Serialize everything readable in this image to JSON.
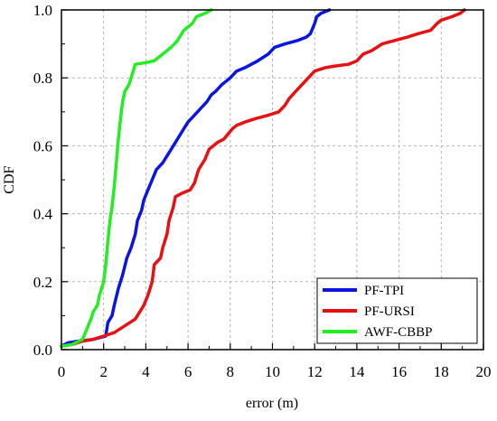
{
  "chart_data": {
    "type": "line",
    "xlabel": "error (m)",
    "ylabel": "CDF",
    "xlim": [
      0,
      20
    ],
    "ylim": [
      0,
      1
    ],
    "x_ticks": [
      0,
      2,
      4,
      6,
      8,
      10,
      12,
      14,
      16,
      18,
      20
    ],
    "y_ticks": [
      0,
      0.2,
      0.4,
      0.6,
      0.8,
      1.0
    ],
    "x_tick_labels": [
      "0",
      "2",
      "4",
      "6",
      "8",
      "10",
      "12",
      "14",
      "16",
      "18",
      "20"
    ],
    "y_tick_labels": [
      "0.0",
      "0.2",
      "0.4",
      "0.6",
      "0.8",
      "1.0"
    ],
    "grid": true,
    "legend_position": "bottom-right",
    "series": [
      {
        "name": "PF-TPI",
        "color": "#0a14e6",
        "points": [
          [
            0,
            0.01
          ],
          [
            0.3,
            0.02
          ],
          [
            0.8,
            0.025
          ],
          [
            1.5,
            0.03
          ],
          [
            2.1,
            0.04
          ],
          [
            2.2,
            0.08
          ],
          [
            2.4,
            0.1
          ],
          [
            2.5,
            0.13
          ],
          [
            2.7,
            0.18
          ],
          [
            2.9,
            0.22
          ],
          [
            3.1,
            0.27
          ],
          [
            3.3,
            0.3
          ],
          [
            3.5,
            0.34
          ],
          [
            3.6,
            0.38
          ],
          [
            3.8,
            0.41
          ],
          [
            3.9,
            0.44
          ],
          [
            4.1,
            0.47
          ],
          [
            4.3,
            0.5
          ],
          [
            4.5,
            0.53
          ],
          [
            4.8,
            0.55
          ],
          [
            5.0,
            0.57
          ],
          [
            5.3,
            0.6
          ],
          [
            5.6,
            0.63
          ],
          [
            5.8,
            0.65
          ],
          [
            6.0,
            0.67
          ],
          [
            6.3,
            0.69
          ],
          [
            6.6,
            0.71
          ],
          [
            6.9,
            0.73
          ],
          [
            7.1,
            0.75
          ],
          [
            7.3,
            0.76
          ],
          [
            7.6,
            0.78
          ],
          [
            8.0,
            0.8
          ],
          [
            8.3,
            0.82
          ],
          [
            8.7,
            0.83
          ],
          [
            9.0,
            0.84
          ],
          [
            9.3,
            0.85
          ],
          [
            9.8,
            0.87
          ],
          [
            10.1,
            0.89
          ],
          [
            10.6,
            0.9
          ],
          [
            11.2,
            0.91
          ],
          [
            11.6,
            0.92
          ],
          [
            11.8,
            0.93
          ],
          [
            12.0,
            0.96
          ],
          [
            12.1,
            0.98
          ],
          [
            12.3,
            0.99
          ],
          [
            12.5,
            0.995
          ],
          [
            12.7,
            1.0
          ]
        ]
      },
      {
        "name": "PF-URSI",
        "color": "#e81010",
        "points": [
          [
            0,
            0.01
          ],
          [
            0.5,
            0.015
          ],
          [
            1.0,
            0.025
          ],
          [
            1.5,
            0.03
          ],
          [
            2.0,
            0.04
          ],
          [
            2.5,
            0.05
          ],
          [
            3.0,
            0.07
          ],
          [
            3.5,
            0.09
          ],
          [
            3.9,
            0.13
          ],
          [
            4.1,
            0.16
          ],
          [
            4.3,
            0.2
          ],
          [
            4.4,
            0.25
          ],
          [
            4.7,
            0.27
          ],
          [
            4.8,
            0.3
          ],
          [
            5.0,
            0.34
          ],
          [
            5.1,
            0.38
          ],
          [
            5.3,
            0.42
          ],
          [
            5.4,
            0.45
          ],
          [
            5.7,
            0.46
          ],
          [
            6.1,
            0.47
          ],
          [
            6.3,
            0.49
          ],
          [
            6.5,
            0.53
          ],
          [
            6.8,
            0.56
          ],
          [
            7.0,
            0.59
          ],
          [
            7.4,
            0.61
          ],
          [
            7.7,
            0.62
          ],
          [
            8.1,
            0.65
          ],
          [
            8.3,
            0.66
          ],
          [
            8.7,
            0.67
          ],
          [
            9.2,
            0.68
          ],
          [
            9.8,
            0.69
          ],
          [
            10.3,
            0.7
          ],
          [
            10.6,
            0.72
          ],
          [
            10.8,
            0.74
          ],
          [
            11.1,
            0.76
          ],
          [
            11.4,
            0.78
          ],
          [
            11.7,
            0.8
          ],
          [
            12.0,
            0.82
          ],
          [
            12.5,
            0.83
          ],
          [
            13.0,
            0.835
          ],
          [
            13.6,
            0.84
          ],
          [
            14.0,
            0.85
          ],
          [
            14.3,
            0.87
          ],
          [
            14.7,
            0.88
          ],
          [
            15.2,
            0.9
          ],
          [
            15.8,
            0.91
          ],
          [
            16.4,
            0.92
          ],
          [
            16.9,
            0.93
          ],
          [
            17.5,
            0.94
          ],
          [
            17.8,
            0.96
          ],
          [
            18.0,
            0.97
          ],
          [
            18.5,
            0.98
          ],
          [
            18.9,
            0.99
          ],
          [
            19.1,
            1.0
          ]
        ]
      },
      {
        "name": "AWF-CBBP",
        "color": "#22ee22",
        "points": [
          [
            0,
            0.01
          ],
          [
            0.5,
            0.015
          ],
          [
            1.0,
            0.03
          ],
          [
            1.2,
            0.06
          ],
          [
            1.4,
            0.09
          ],
          [
            1.5,
            0.11
          ],
          [
            1.7,
            0.13
          ],
          [
            1.8,
            0.16
          ],
          [
            1.9,
            0.18
          ],
          [
            2.0,
            0.2
          ],
          [
            2.1,
            0.25
          ],
          [
            2.2,
            0.32
          ],
          [
            2.3,
            0.38
          ],
          [
            2.4,
            0.42
          ],
          [
            2.5,
            0.48
          ],
          [
            2.6,
            0.55
          ],
          [
            2.7,
            0.62
          ],
          [
            2.8,
            0.68
          ],
          [
            2.9,
            0.73
          ],
          [
            3.0,
            0.76
          ],
          [
            3.2,
            0.78
          ],
          [
            3.3,
            0.8
          ],
          [
            3.4,
            0.82
          ],
          [
            3.5,
            0.84
          ],
          [
            4.0,
            0.845
          ],
          [
            4.4,
            0.85
          ],
          [
            4.8,
            0.87
          ],
          [
            5.2,
            0.89
          ],
          [
            5.5,
            0.91
          ],
          [
            5.8,
            0.94
          ],
          [
            6.2,
            0.96
          ],
          [
            6.4,
            0.98
          ],
          [
            6.8,
            0.99
          ],
          [
            7.1,
            1.0
          ]
        ]
      }
    ]
  }
}
